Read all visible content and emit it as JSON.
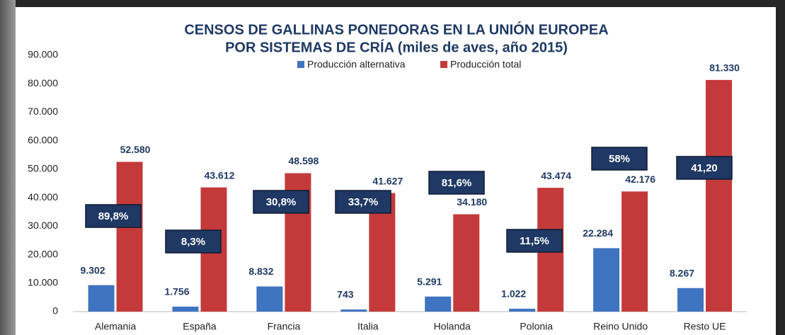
{
  "chart_data": {
    "type": "bar",
    "title": "CENSOS DE GALLINAS PONEDORAS EN LA UNIÓN EUROPEA",
    "subtitle": "POR SISTEMAS DE CRÍA (miles de aves, año 2015)",
    "categories": [
      "Alemania",
      "España",
      "Francia",
      "Italia",
      "Holanda",
      "Polonia",
      "Reino Unido",
      "Resto UE"
    ],
    "series": [
      {
        "name": "Producción alternativa",
        "color": "#3f74c0",
        "values": [
          9302,
          1756,
          8832,
          743,
          5291,
          1022,
          22284,
          8267
        ],
        "value_labels": [
          "9.302",
          "1.756",
          "8.832",
          "743",
          "5.291",
          "1.022",
          "22.284",
          "8.267"
        ]
      },
      {
        "name": "Producción total",
        "color": "#c43a3a",
        "values": [
          52580,
          43612,
          48598,
          41627,
          34180,
          43474,
          42176,
          81330
        ],
        "value_labels": [
          "52.580",
          "43.612",
          "48.598",
          "41.627",
          "34.180",
          "43.474",
          "42.176",
          "81.330"
        ]
      }
    ],
    "annotations": [
      "89,8%",
      "8,3%",
      "30,8%",
      "33,7%",
      "81,6%",
      "11,5%",
      "58%",
      "41,20"
    ],
    "ylim": [
      0,
      90000
    ],
    "yticks": [
      0,
      {
        "value": 10000,
        "label": "10.000"
      },
      {
        "value": 20000,
        "label": "20.000"
      },
      {
        "value": 30000,
        "label": "30.000"
      },
      {
        "value": 40000,
        "label": "40.000"
      },
      {
        "value": 50000,
        "label": "50.000"
      },
      {
        "value": 60000,
        "label": "60.000"
      },
      {
        "value": 70000,
        "label": "70.000"
      },
      {
        "value": 80000,
        "label": "80.000"
      },
      {
        "value": 90000,
        "label": "90.000"
      }
    ],
    "grid": false,
    "legend": "top"
  }
}
